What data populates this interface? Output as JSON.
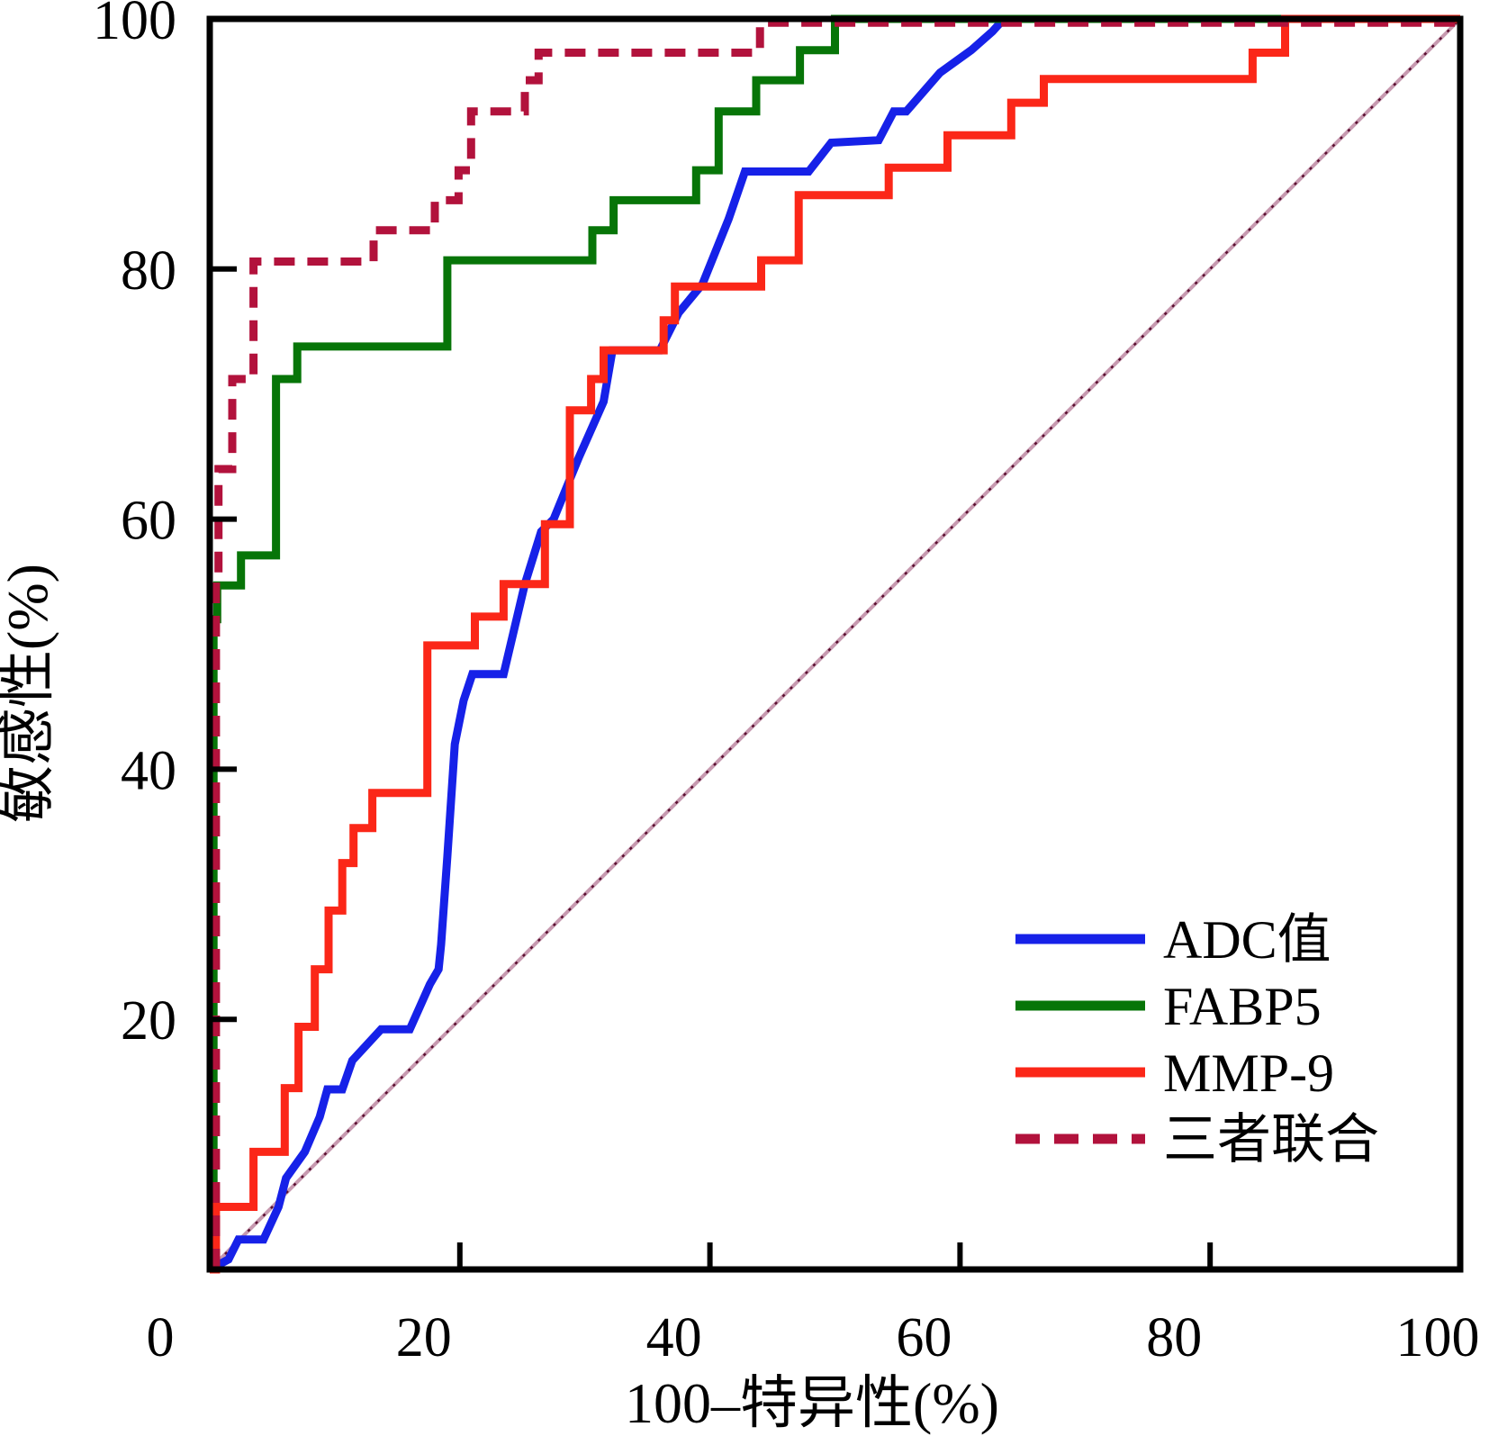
{
  "chart_data": {
    "type": "line",
    "subtype": "roc-curves",
    "title": "",
    "xlabel": "100–特异性(%)",
    "ylabel": "敏感性(%)",
    "xlim": [
      0,
      100
    ],
    "ylim": [
      0,
      100
    ],
    "x_ticks": [
      0,
      20,
      40,
      60,
      80,
      100
    ],
    "y_ticks": [
      20,
      40,
      60,
      80,
      100
    ],
    "grid": false,
    "legend_position": "lower right",
    "frame_color": "#000000",
    "reference_line": {
      "name": "chance-diagonal",
      "points": [
        [
          0,
          0
        ],
        [
          100,
          100
        ]
      ],
      "base_color": "#cякзамен",
      "color": "#5a1030",
      "halo_color": "#c79ab0",
      "style": "dotted-thin"
    },
    "series": [
      {
        "name": "ADC值",
        "color": "#1621e8",
        "style": "solid",
        "points": [
          [
            0,
            0
          ],
          [
            1.5,
            0.8
          ],
          [
            2.3,
            2.4
          ],
          [
            4.3,
            2.4
          ],
          [
            5.5,
            5.0
          ],
          [
            6.1,
            7.3
          ],
          [
            7.6,
            9.4
          ],
          [
            8.8,
            12.2
          ],
          [
            9.4,
            14.4
          ],
          [
            10.6,
            14.4
          ],
          [
            11.4,
            16.7
          ],
          [
            13.7,
            19.2
          ],
          [
            16.0,
            19.2
          ],
          [
            17.6,
            22.8
          ],
          [
            18.3,
            24.0
          ],
          [
            18.5,
            26.0
          ],
          [
            19.0,
            33.0
          ],
          [
            19.6,
            42.0
          ],
          [
            20.3,
            45.5
          ],
          [
            21.0,
            47.6
          ],
          [
            23.5,
            47.6
          ],
          [
            25.2,
            54.8
          ],
          [
            26.5,
            59.0
          ],
          [
            27.5,
            60.0
          ],
          [
            29.5,
            64.9
          ],
          [
            31.5,
            69.4
          ],
          [
            32.2,
            73.5
          ],
          [
            36.0,
            73.5
          ],
          [
            37.5,
            76.5
          ],
          [
            39.4,
            78.8
          ],
          [
            41.5,
            84.0
          ],
          [
            42.8,
            87.8
          ],
          [
            47.9,
            87.8
          ],
          [
            49.7,
            90.1
          ],
          [
            53.5,
            90.3
          ],
          [
            54.7,
            92.6
          ],
          [
            55.7,
            92.6
          ],
          [
            58.4,
            95.7
          ],
          [
            60.9,
            97.5
          ],
          [
            62.6,
            99.0
          ],
          [
            63.5,
            100
          ],
          [
            100,
            100
          ]
        ]
      },
      {
        "name": "FABP5",
        "color": "#077508",
        "style": "solid",
        "points": [
          [
            0.3,
            0
          ],
          [
            0.3,
            52.0
          ],
          [
            0.6,
            52.0
          ],
          [
            0.6,
            54.7
          ],
          [
            2.5,
            54.7
          ],
          [
            2.5,
            57.1
          ],
          [
            5.3,
            57.1
          ],
          [
            5.3,
            71.2
          ],
          [
            7.0,
            71.2
          ],
          [
            7.0,
            73.8
          ],
          [
            19.0,
            73.8
          ],
          [
            19.0,
            80.7
          ],
          [
            30.6,
            80.7
          ],
          [
            30.6,
            83.1
          ],
          [
            32.3,
            83.1
          ],
          [
            32.3,
            85.5
          ],
          [
            38.9,
            85.5
          ],
          [
            38.9,
            87.9
          ],
          [
            40.7,
            87.9
          ],
          [
            40.7,
            92.6
          ],
          [
            43.7,
            92.6
          ],
          [
            43.7,
            95.1
          ],
          [
            47.2,
            95.1
          ],
          [
            47.2,
            97.5
          ],
          [
            50.0,
            97.5
          ],
          [
            50.0,
            100
          ],
          [
            100,
            100
          ]
        ]
      },
      {
        "name": "MMP-9",
        "color": "#fb2718",
        "style": "solid",
        "points": [
          [
            0,
            0
          ],
          [
            0.5,
            0
          ],
          [
            0.5,
            5.0
          ],
          [
            3.5,
            5.0
          ],
          [
            3.5,
            9.4
          ],
          [
            6.0,
            9.4
          ],
          [
            6.0,
            14.5
          ],
          [
            7.1,
            14.5
          ],
          [
            7.1,
            19.4
          ],
          [
            8.4,
            19.4
          ],
          [
            8.4,
            24.0
          ],
          [
            9.5,
            24.0
          ],
          [
            9.5,
            28.7
          ],
          [
            10.6,
            28.7
          ],
          [
            10.6,
            32.5
          ],
          [
            11.5,
            32.5
          ],
          [
            11.5,
            35.3
          ],
          [
            13.0,
            35.3
          ],
          [
            13.0,
            38.1
          ],
          [
            17.4,
            38.1
          ],
          [
            17.4,
            49.9
          ],
          [
            21.2,
            49.9
          ],
          [
            21.2,
            52.2
          ],
          [
            23.5,
            52.2
          ],
          [
            23.5,
            54.8
          ],
          [
            26.8,
            54.8
          ],
          [
            26.8,
            59.6
          ],
          [
            28.8,
            59.6
          ],
          [
            28.8,
            68.7
          ],
          [
            30.5,
            68.7
          ],
          [
            30.5,
            71.2
          ],
          [
            31.5,
            71.2
          ],
          [
            31.5,
            73.5
          ],
          [
            36.3,
            73.5
          ],
          [
            36.3,
            75.9
          ],
          [
            37.2,
            75.9
          ],
          [
            37.2,
            78.6
          ],
          [
            44.1,
            78.6
          ],
          [
            44.1,
            80.7
          ],
          [
            47.1,
            80.7
          ],
          [
            47.1,
            85.9
          ],
          [
            54.3,
            85.9
          ],
          [
            54.3,
            88.1
          ],
          [
            59.0,
            88.1
          ],
          [
            59.0,
            90.7
          ],
          [
            64.1,
            90.7
          ],
          [
            64.1,
            93.3
          ],
          [
            66.7,
            93.3
          ],
          [
            66.7,
            95.2
          ],
          [
            83.4,
            95.2
          ],
          [
            83.4,
            97.3
          ],
          [
            86.0,
            97.3
          ],
          [
            86.0,
            100
          ],
          [
            100,
            100
          ]
        ]
      },
      {
        "name": "三者联合",
        "color": "#b2123c",
        "style": "dashed",
        "points": [
          [
            0.5,
            0
          ],
          [
            0.5,
            55.0
          ],
          [
            0.7,
            55.0
          ],
          [
            0.7,
            64.0
          ],
          [
            1.8,
            64.0
          ],
          [
            1.8,
            71.2
          ],
          [
            3.5,
            71.2
          ],
          [
            3.5,
            80.6
          ],
          [
            13.1,
            80.6
          ],
          [
            13.1,
            83.1
          ],
          [
            18.0,
            83.1
          ],
          [
            18.0,
            85.5
          ],
          [
            19.9,
            85.5
          ],
          [
            19.9,
            87.9
          ],
          [
            20.9,
            87.9
          ],
          [
            20.9,
            92.6
          ],
          [
            25.2,
            92.6
          ],
          [
            25.2,
            95.1
          ],
          [
            26.3,
            95.1
          ],
          [
            26.3,
            97.3
          ],
          [
            44.0,
            97.3
          ],
          [
            44.0,
            99.7
          ],
          [
            100,
            99.7
          ]
        ]
      }
    ],
    "legend": {
      "items": [
        "ADC值",
        "FABP5",
        "MMP-9",
        "三者联合"
      ]
    }
  }
}
